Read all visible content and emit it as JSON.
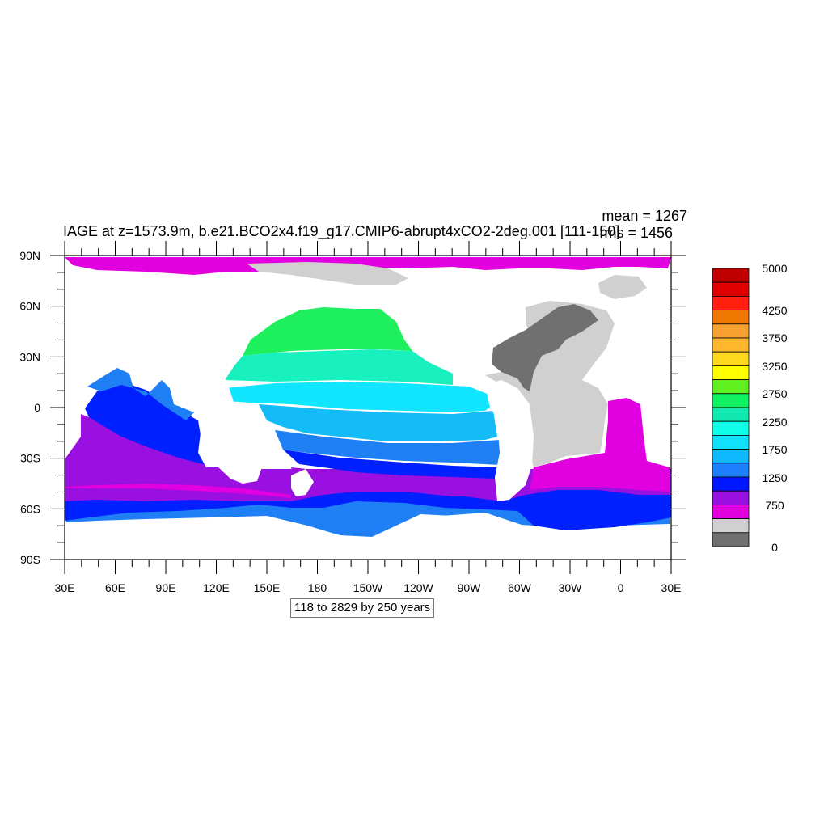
{
  "title": "IAGE at z=1573.9m, b.e21.BCO2x4.f19_g17.CMIP6-abrupt4xCO2-2deg.001 [111-150]",
  "stats": {
    "mean": "mean = 1267",
    "rms": "rms = 1456"
  },
  "caption": "118 to 2829 by 250 years",
  "map": {
    "lat_labels": [
      "90N",
      "60N",
      "30N",
      "0",
      "30S",
      "60S",
      "90S"
    ],
    "lon_labels": [
      "30E",
      "60E",
      "90E",
      "120E",
      "150E",
      "180",
      "150W",
      "120W",
      "90W",
      "60W",
      "30W",
      "0",
      "30E"
    ],
    "land_color": "#ffffff",
    "colors": {
      "magenta": "#e000e0",
      "purple": "#9a10e0",
      "blue": "#0020ff",
      "medium_blue": "#1f7ff5",
      "sky": "#13bcf7",
      "cyan": "#12e6ff",
      "cyan_light": "#17f8f0",
      "teal": "#19f0c0",
      "green": "#1df05c",
      "lime": "#63ff1a",
      "dark_gray": "#707070",
      "light_gray": "#d0d0d0"
    }
  },
  "colorbar": {
    "label_values": [
      "5000",
      "4250",
      "3750",
      "3250",
      "2750",
      "2250",
      "1750",
      "1250",
      "750",
      "0"
    ],
    "bin_colors": [
      "#c00000",
      "#e00000",
      "#ff2010",
      "#f07800",
      "#f8a030",
      "#ffb82c",
      "#ffd820",
      "#ffff00",
      "#60f020",
      "#10f060",
      "#12e8b0",
      "#10ffe8",
      "#12e0ff",
      "#10b8ff",
      "#1e80ff",
      "#0018ff",
      "#9a10e0",
      "#e000e0",
      "#d0d0d0",
      "#707070"
    ]
  }
}
